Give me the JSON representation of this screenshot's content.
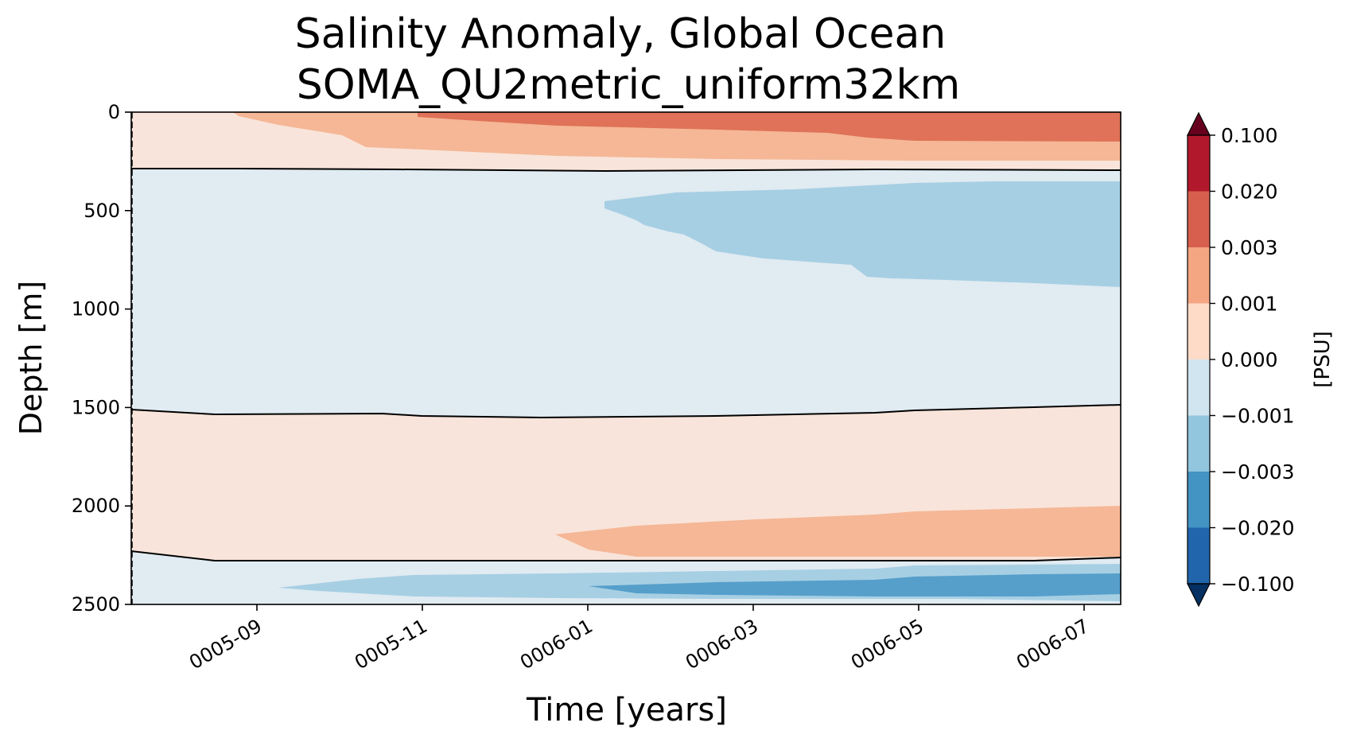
{
  "chart_data": {
    "type": "heatmap",
    "title": "Salinity Anomaly, Global Ocean",
    "subtitle": "SOMA_QU2metric_uniform32km",
    "xlabel": "Time [years]",
    "ylabel": "Depth [m]",
    "x_ticks": [
      "0005-09",
      "0005-11",
      "0006-01",
      "0006-03",
      "0006-05",
      "0006-07"
    ],
    "y_ticks": [
      "0",
      "500",
      "1000",
      "1500",
      "2000",
      "2500"
    ],
    "y_tick_values": [
      0,
      500,
      1000,
      1500,
      2000,
      2500
    ],
    "ylim": [
      2500,
      0
    ],
    "colorbar": {
      "label": "[PSU]",
      "tick_labels": [
        "0.100",
        "0.020",
        "0.003",
        "0.001",
        "0.000",
        "−0.001",
        "−0.003",
        "−0.020",
        "−0.100"
      ],
      "extend": "both",
      "colors": [
        "#67001f",
        "#b2182b",
        "#d6604d",
        "#f4a582",
        "#fddbc7",
        "#d1e5f0",
        "#92c5de",
        "#4393c3",
        "#2166ac",
        "#053061"
      ]
    },
    "contour_bands": [
      {
        "level_range": "0.000 to 0.001",
        "color": "#f8e4da"
      },
      {
        "level_range": "0.001 to 0.003",
        "color": "#f5b796"
      },
      {
        "level_range": "0.003 to 0.020",
        "color": "#df7258"
      },
      {
        "level_range": "-0.001 to 0.000",
        "color": "#e0ebf2"
      },
      {
        "level_range": "-0.003 to -0.001",
        "color": "#a7cfe3"
      },
      {
        "level_range": "-0.020 to -0.003",
        "color": "#569fcb"
      }
    ],
    "zero_contour_color": "#000000"
  }
}
